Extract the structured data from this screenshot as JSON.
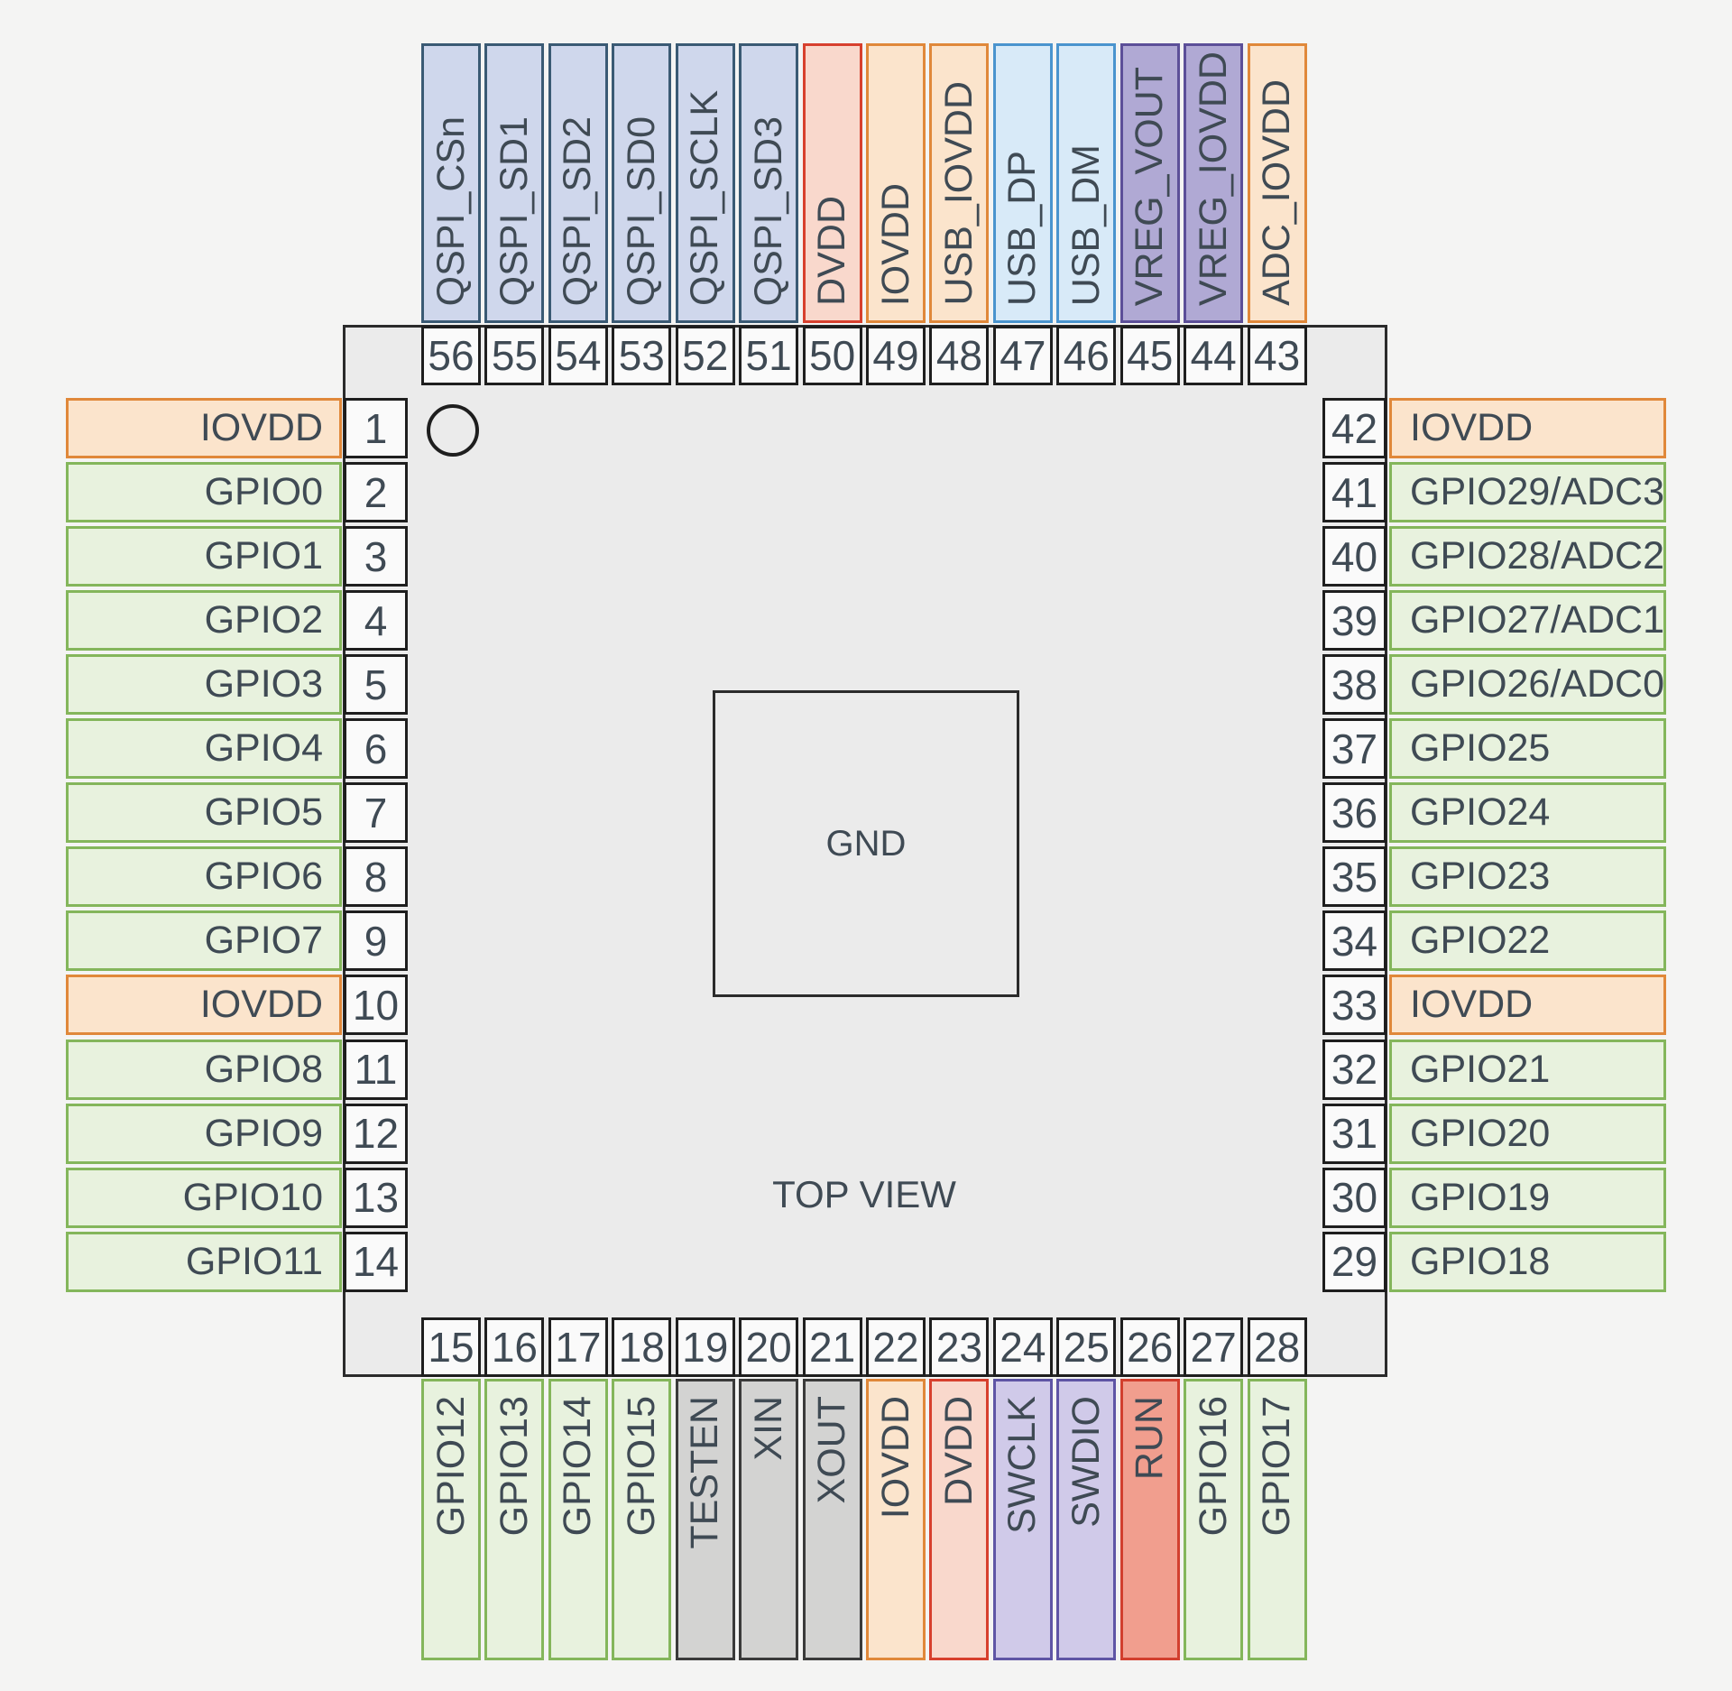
{
  "center": {
    "pad_label": "GND",
    "view_label": "TOP VIEW"
  },
  "palette": {
    "gpio": {
      "fill": "#e8f2de",
      "border": "#84b65b"
    },
    "power_io": {
      "fill": "#fbe4cc",
      "border": "#e0883a"
    },
    "power_core": {
      "fill": "#f9d8cc",
      "border": "#d7402e"
    },
    "qspi": {
      "fill": "#cfd7ec",
      "border": "#3a5a74"
    },
    "usb": {
      "fill": "#d8eaf8",
      "border": "#4a94ce"
    },
    "vreg": {
      "fill": "#b0a9d4",
      "border": "#5c4f98"
    },
    "swd": {
      "fill": "#d0cae9",
      "border": "#5f55a5"
    },
    "run": {
      "fill": "#f19e8e",
      "border": "#d23f2e"
    },
    "test": {
      "fill": "#d3d3d2",
      "border": "#3a3a3a"
    },
    "chip_fill": "#ebebeb",
    "chip_border": "#2b2b2b",
    "number_fill": "#fafafa",
    "text": "#3f4a54",
    "background": "#f4f4f3"
  },
  "sides": {
    "left": [
      {
        "pin": 1,
        "label": "IOVDD",
        "type": "power_io"
      },
      {
        "pin": 2,
        "label": "GPIO0",
        "type": "gpio"
      },
      {
        "pin": 3,
        "label": "GPIO1",
        "type": "gpio"
      },
      {
        "pin": 4,
        "label": "GPIO2",
        "type": "gpio"
      },
      {
        "pin": 5,
        "label": "GPIO3",
        "type": "gpio"
      },
      {
        "pin": 6,
        "label": "GPIO4",
        "type": "gpio"
      },
      {
        "pin": 7,
        "label": "GPIO5",
        "type": "gpio"
      },
      {
        "pin": 8,
        "label": "GPIO6",
        "type": "gpio"
      },
      {
        "pin": 9,
        "label": "GPIO7",
        "type": "gpio"
      },
      {
        "pin": 10,
        "label": "IOVDD",
        "type": "power_io"
      },
      {
        "pin": 11,
        "label": "GPIO8",
        "type": "gpio"
      },
      {
        "pin": 12,
        "label": "GPIO9",
        "type": "gpio"
      },
      {
        "pin": 13,
        "label": "GPIO10",
        "type": "gpio"
      },
      {
        "pin": 14,
        "label": "GPIO11",
        "type": "gpio"
      }
    ],
    "top": [
      {
        "pin": 56,
        "label": "QSPI_CSn",
        "type": "qspi"
      },
      {
        "pin": 55,
        "label": "QSPI_SD1",
        "type": "qspi"
      },
      {
        "pin": 54,
        "label": "QSPI_SD2",
        "type": "qspi"
      },
      {
        "pin": 53,
        "label": "QSPI_SD0",
        "type": "qspi"
      },
      {
        "pin": 52,
        "label": "QSPI_SCLK",
        "type": "qspi"
      },
      {
        "pin": 51,
        "label": "QSPI_SD3",
        "type": "qspi"
      },
      {
        "pin": 50,
        "label": "DVDD",
        "type": "power_core"
      },
      {
        "pin": 49,
        "label": "IOVDD",
        "type": "power_io"
      },
      {
        "pin": 48,
        "label": "USB_IOVDD",
        "type": "power_io"
      },
      {
        "pin": 47,
        "label": "USB_DP",
        "type": "usb"
      },
      {
        "pin": 46,
        "label": "USB_DM",
        "type": "usb"
      },
      {
        "pin": 45,
        "label": "VREG_VOUT",
        "type": "vreg"
      },
      {
        "pin": 44,
        "label": "VREG_IOVDD",
        "type": "vreg"
      },
      {
        "pin": 43,
        "label": "ADC_IOVDD",
        "type": "power_io"
      }
    ],
    "right": [
      {
        "pin": 42,
        "label": "IOVDD",
        "type": "power_io"
      },
      {
        "pin": 41,
        "label": "GPIO29/ADC3",
        "type": "gpio"
      },
      {
        "pin": 40,
        "label": "GPIO28/ADC2",
        "type": "gpio"
      },
      {
        "pin": 39,
        "label": "GPIO27/ADC1",
        "type": "gpio"
      },
      {
        "pin": 38,
        "label": "GPIO26/ADC0",
        "type": "gpio"
      },
      {
        "pin": 37,
        "label": "GPIO25",
        "type": "gpio"
      },
      {
        "pin": 36,
        "label": "GPIO24",
        "type": "gpio"
      },
      {
        "pin": 35,
        "label": "GPIO23",
        "type": "gpio"
      },
      {
        "pin": 34,
        "label": "GPIO22",
        "type": "gpio"
      },
      {
        "pin": 33,
        "label": "IOVDD",
        "type": "power_io"
      },
      {
        "pin": 32,
        "label": "GPIO21",
        "type": "gpio"
      },
      {
        "pin": 31,
        "label": "GPIO20",
        "type": "gpio"
      },
      {
        "pin": 30,
        "label": "GPIO19",
        "type": "gpio"
      },
      {
        "pin": 29,
        "label": "GPIO18",
        "type": "gpio"
      }
    ],
    "bottom": [
      {
        "pin": 15,
        "label": "GPIO12",
        "type": "gpio"
      },
      {
        "pin": 16,
        "label": "GPIO13",
        "type": "gpio"
      },
      {
        "pin": 17,
        "label": "GPIO14",
        "type": "gpio"
      },
      {
        "pin": 18,
        "label": "GPIO15",
        "type": "gpio"
      },
      {
        "pin": 19,
        "label": "TESTEN",
        "type": "test"
      },
      {
        "pin": 20,
        "label": "XIN",
        "type": "test"
      },
      {
        "pin": 21,
        "label": "XOUT",
        "type": "test"
      },
      {
        "pin": 22,
        "label": "IOVDD",
        "type": "power_io"
      },
      {
        "pin": 23,
        "label": "DVDD",
        "type": "power_core"
      },
      {
        "pin": 24,
        "label": "SWCLK",
        "type": "swd"
      },
      {
        "pin": 25,
        "label": "SWDIO",
        "type": "swd"
      },
      {
        "pin": 26,
        "label": "RUN",
        "type": "run"
      },
      {
        "pin": 27,
        "label": "GPIO16",
        "type": "gpio"
      },
      {
        "pin": 28,
        "label": "GPIO17",
        "type": "gpio"
      }
    ]
  }
}
